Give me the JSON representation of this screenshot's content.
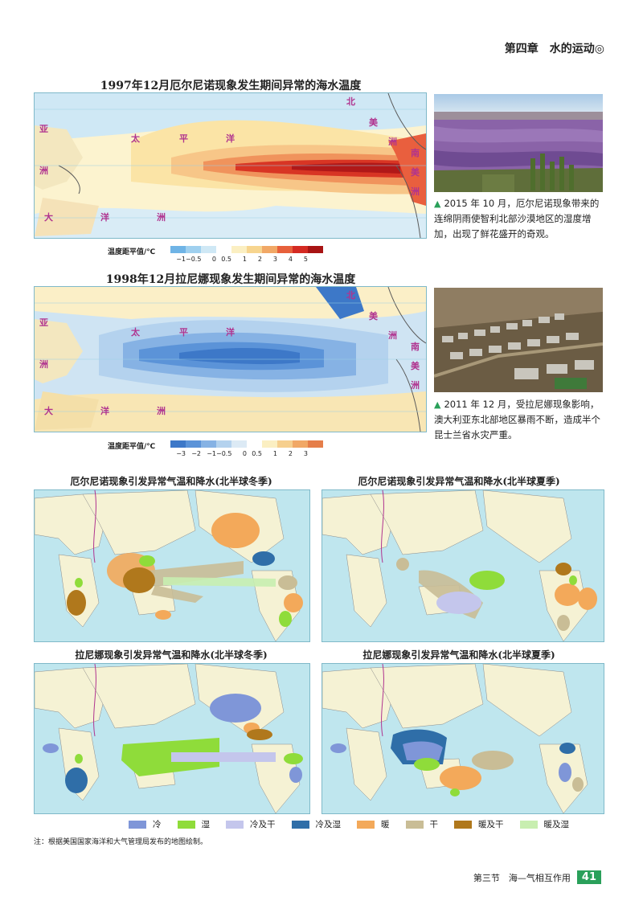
{
  "header": {
    "chapter": "第四章　水的运动◎"
  },
  "figures": {
    "elnino_sst": {
      "title": "1997年12月厄尔尼诺现象发生期间异常的海水温度",
      "labels": {
        "asia1": "亚",
        "asia2": "洲",
        "pacific1": "太",
        "pacific2": "平",
        "pacific3": "洋",
        "ocean1": "大",
        "ocean2": "洋",
        "ocean3": "洲",
        "na1": "北",
        "na2": "美",
        "na3": "洲",
        "sa1": "南",
        "sa2": "美",
        "sa3": "洲"
      },
      "legend_label": "温度距平值/℃",
      "ticks": [
        "−1",
        "−0.5",
        "0",
        "0.5",
        "1",
        "2",
        "3",
        "4",
        "5"
      ],
      "colors": [
        "#6fb4e6",
        "#9fd0ef",
        "#cfe8f5",
        "#ffffff",
        "#fbefc2",
        "#f7d58f",
        "#f1a866",
        "#e7603b",
        "#d42a22",
        "#a81414"
      ]
    },
    "lanina_sst": {
      "title": "1998年12月拉尼娜现象发生期间异常的海水温度",
      "labels": {
        "asia1": "亚",
        "asia2": "洲",
        "pacific1": "太",
        "pacific2": "平",
        "pacific3": "洋",
        "ocean1": "大",
        "ocean2": "洋",
        "ocean3": "洲",
        "na1": "北",
        "na2": "美",
        "na3": "洲",
        "sa1": "南",
        "sa2": "美",
        "sa3": "洲"
      },
      "legend_label": "温度距平值/℃",
      "ticks": [
        "−3",
        "−2",
        "−1",
        "−0.5",
        "0",
        "0.5",
        "1",
        "2",
        "3"
      ],
      "colors": [
        "#3d78c8",
        "#5b93d8",
        "#86b2e4",
        "#b4d2ee",
        "#dceaf5",
        "#ffffff",
        "#fbefc2",
        "#f6cf8e",
        "#f1a866",
        "#e57e4a"
      ]
    },
    "elnino_winter": {
      "title": "厄尔尼诺现象引发异常气温和降水(北半球冬季)"
    },
    "elnino_summer": {
      "title": "厄尔尼诺现象引发异常气温和降水(北半球夏季)"
    },
    "lanina_winter": {
      "title": "拉尼娜现象引发异常气温和降水(北半球冬季)"
    },
    "lanina_summer": {
      "title": "拉尼娜现象引发异常气温和降水(北半球夏季)"
    }
  },
  "photos": {
    "chile": {
      "caption": "2015 年 10 月，厄尔尼诺现象带来的连绵阴雨使智利北部沙漠地区的湿度增加，出现了鲜花盛开的奇观。"
    },
    "australia": {
      "caption": "2011 年 12 月，受拉尼娜现象影响，澳大利亚东北部地区暴雨不断，造成半个昆士兰省水灾严重。"
    }
  },
  "legend": [
    {
      "label": "冷",
      "color": "#7f96d8"
    },
    {
      "label": "湿",
      "color": "#8fdc3a"
    },
    {
      "label": "冷及干",
      "color": "#c4c6ec"
    },
    {
      "label": "冷及湿",
      "color": "#2f6ea8"
    },
    {
      "label": "暖",
      "color": "#f3a95a"
    },
    {
      "label": "干",
      "color": "#c9bd96"
    },
    {
      "label": "暖及干",
      "color": "#b0781c"
    },
    {
      "label": "暖及湿",
      "color": "#c8eeb0"
    }
  ],
  "note": "注：根据美国国家海洋和大气管理局发布的地图绘制。",
  "footer": {
    "section": "第三节　海—气相互作用",
    "page": "41"
  }
}
